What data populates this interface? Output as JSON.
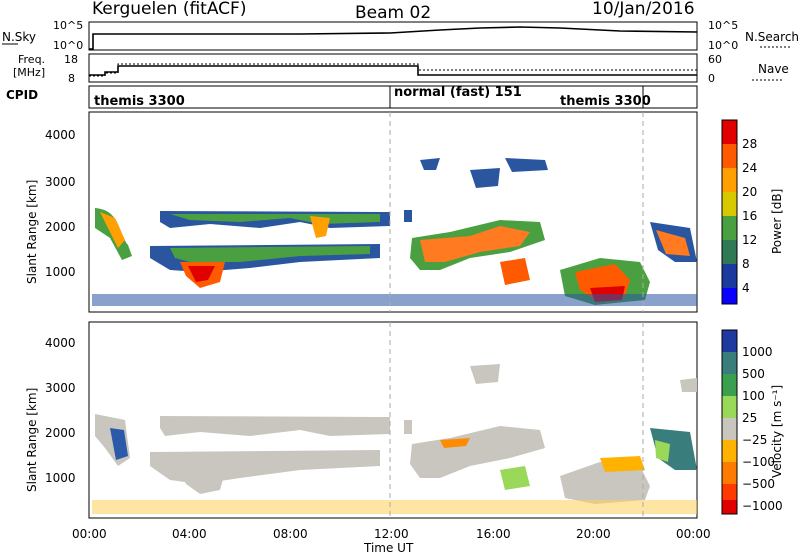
{
  "header": {
    "radar": "Kerguelen (fitACF)",
    "beam": "Beam 02",
    "date": "10/Jan/2016"
  },
  "panels": {
    "nsky": {
      "label": "N.Sky",
      "tick_top": "10^5",
      "tick_bottom": "10^0",
      "right_label": "N.Search",
      "right_tick_top": "10^5",
      "right_tick_bottom": "10^0"
    },
    "freq": {
      "label_line1": "Freq.",
      "label_line2": "[MHz]",
      "tick_top": "18",
      "tick_bottom": "8",
      "right_label": "Nave",
      "right_tick_top": "60",
      "right_tick_bottom": "0"
    },
    "cpid": {
      "label": "CPID",
      "segments": [
        "themis 3300",
        "normal (fast) 151",
        "themis 3300"
      ]
    }
  },
  "chart_data": [
    {
      "type": "heatmap",
      "name": "power",
      "ylabel": "Slant Range [km]",
      "yticks": [
        "4000",
        "3000",
        "2000",
        "1000"
      ],
      "ylim": [
        200,
        4600
      ],
      "colorbar": {
        "label": "Power [dB]",
        "ticks": [
          "28",
          "24",
          "20",
          "16",
          "12",
          "8",
          "4"
        ],
        "colors": [
          "#e00000",
          "#ff5a00",
          "#ffa000",
          "#d8c800",
          "#4aa040",
          "#2f7a55",
          "#1a3aa0",
          "#0a00ff"
        ]
      }
    },
    {
      "type": "heatmap",
      "name": "velocity",
      "ylabel": "Slant Range [km]",
      "yticks": [
        "4000",
        "3000",
        "2000",
        "1000"
      ],
      "ylim": [
        200,
        4600
      ],
      "xlabel": "Time UT",
      "xticks": [
        "00:00",
        "04:00",
        "08:00",
        "12:00",
        "16:00",
        "20:00",
        "00:00"
      ],
      "colorbar": {
        "label": "Velocity [m s⁻¹]",
        "ticks": [
          "1000",
          "500",
          "100",
          "25",
          "−25",
          "−100",
          "−500",
          "−1000"
        ],
        "colors": [
          "#1e3aa0",
          "#3a7d7d",
          "#3aa050",
          "#9ad85a",
          "#c9c6bf",
          "#ffb300",
          "#ff7a00",
          "#ff3a00",
          "#e00000"
        ]
      }
    }
  ]
}
